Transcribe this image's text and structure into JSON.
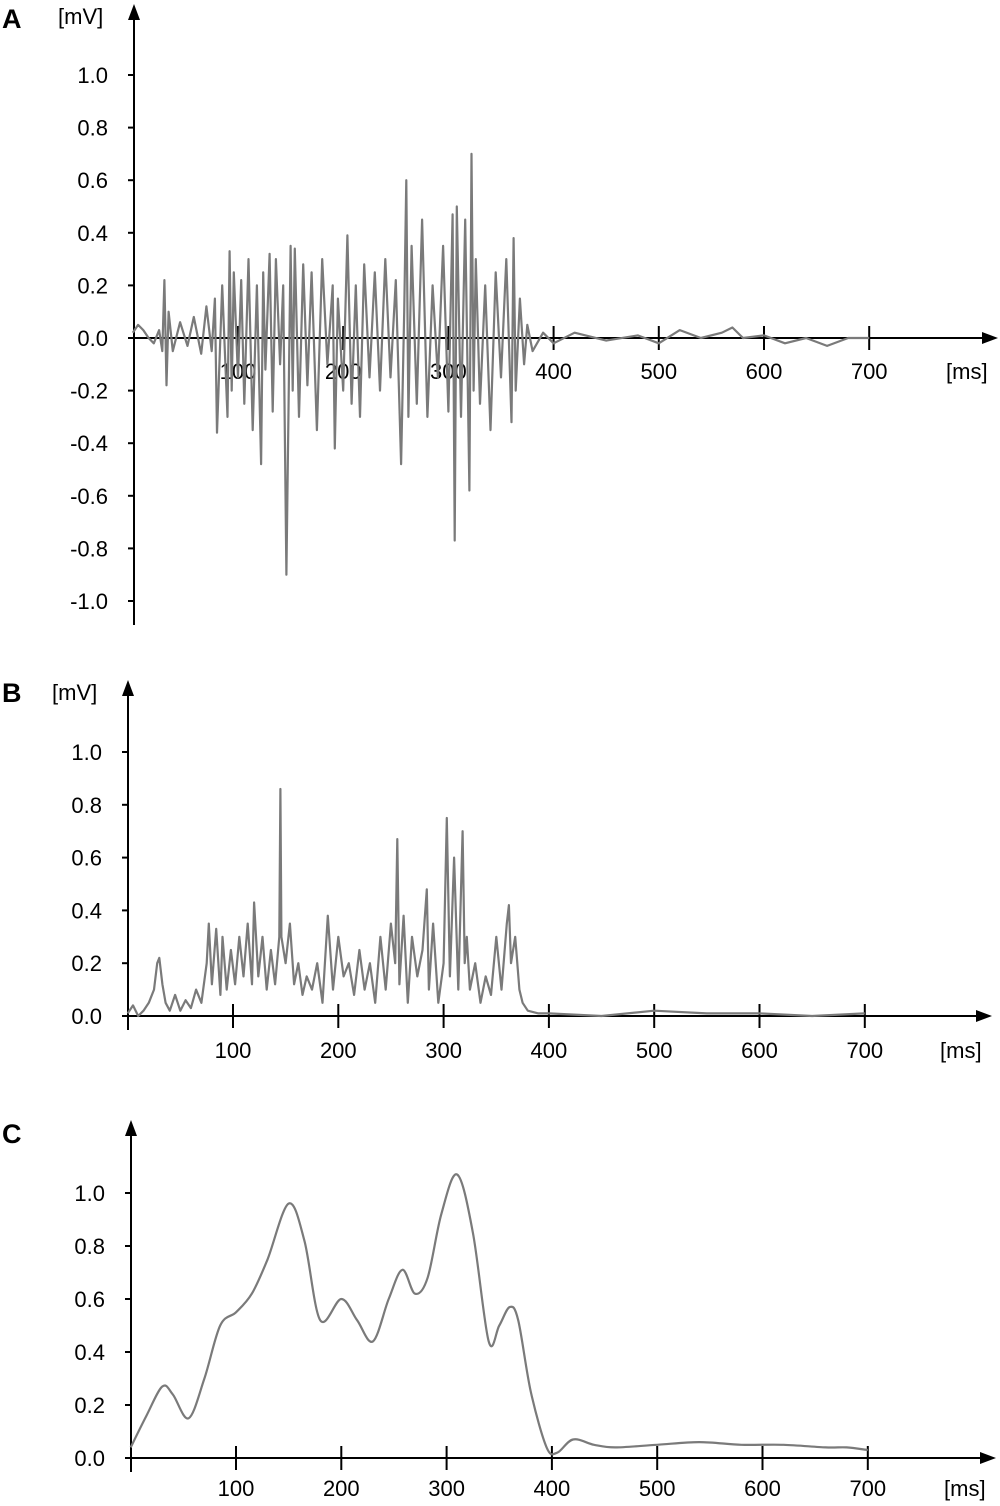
{
  "chart_data": [
    {
      "panel": "A",
      "type": "line",
      "ylabel": "[mV]",
      "xlabel": "[ms]",
      "xlim": [
        0,
        820
      ],
      "ylim": [
        -1.08,
        1.22
      ],
      "xticks": [
        100,
        200,
        300,
        400,
        500,
        600,
        700
      ],
      "xtick_labels": [
        "100",
        "200",
        "300",
        "400",
        "500",
        "600",
        "700"
      ],
      "yticks": [
        -1.0,
        -0.8,
        -0.6,
        -0.4,
        -0.2,
        0.0,
        0.2,
        0.4,
        0.6,
        0.8,
        1.0
      ],
      "ytick_labels": [
        "-1.0",
        "-0.8",
        "-0.6",
        "-0.4",
        "-0.2",
        "0.0",
        "0.2",
        "0.4",
        "0.6",
        "0.8",
        "1.0"
      ],
      "series": [
        {
          "color": "#7a7a7a",
          "x": [
            0,
            5,
            10,
            15,
            20,
            25,
            28,
            30,
            32,
            34,
            38,
            45,
            52,
            58,
            65,
            70,
            75,
            78,
            80,
            85,
            90,
            92,
            94,
            96,
            100,
            103,
            106,
            110,
            114,
            118,
            122,
            124,
            126,
            130,
            133,
            136,
            140,
            143,
            146,
            150,
            152,
            154,
            158,
            162,
            166,
            170,
            175,
            180,
            185,
            190,
            192,
            195,
            200,
            204,
            208,
            212,
            216,
            220,
            225,
            230,
            235,
            240,
            245,
            250,
            255,
            258,
            260,
            262,
            265,
            270,
            275,
            280,
            285,
            290,
            295,
            300,
            304,
            306,
            308,
            312,
            316,
            320,
            322,
            324,
            326,
            330,
            335,
            340,
            345,
            350,
            355,
            360,
            362,
            364,
            368,
            372,
            375,
            380,
            390,
            400,
            420,
            450,
            480,
            500,
            520,
            540,
            560,
            570,
            580,
            600,
            620,
            640,
            660,
            680,
            700
          ],
          "y": [
            0.02,
            0.05,
            0.03,
            0.0,
            -0.02,
            0.03,
            -0.05,
            0.22,
            -0.18,
            0.1,
            -0.05,
            0.06,
            -0.03,
            0.08,
            -0.06,
            0.12,
            -0.05,
            0.15,
            -0.36,
            0.2,
            -0.3,
            0.33,
            -0.2,
            0.25,
            -0.15,
            0.22,
            -0.25,
            0.3,
            -0.35,
            0.2,
            -0.48,
            0.25,
            -0.12,
            0.32,
            -0.28,
            0.3,
            -0.1,
            0.2,
            -0.9,
            0.35,
            -0.2,
            0.34,
            -0.3,
            0.28,
            -0.18,
            0.25,
            -0.35,
            0.3,
            -0.1,
            0.2,
            -0.42,
            0.15,
            -0.2,
            0.39,
            -0.25,
            0.2,
            -0.3,
            0.28,
            -0.15,
            0.25,
            -0.2,
            0.3,
            -0.15,
            0.22,
            -0.48,
            0.1,
            0.6,
            -0.3,
            0.35,
            -0.25,
            0.45,
            -0.3,
            0.2,
            -0.15,
            0.35,
            -0.28,
            0.47,
            -0.77,
            0.5,
            -0.3,
            0.45,
            -0.58,
            0.7,
            -0.2,
            0.3,
            -0.25,
            0.2,
            -0.35,
            0.25,
            -0.15,
            0.3,
            -0.32,
            0.38,
            -0.2,
            0.15,
            -0.1,
            0.05,
            -0.05,
            0.02,
            -0.02,
            0.02,
            -0.01,
            0.01,
            -0.02,
            0.03,
            0.0,
            0.02,
            0.04,
            0.0,
            0.01,
            -0.02,
            0.0,
            -0.03,
            0.0,
            0.0
          ]
        }
      ]
    },
    {
      "panel": "B",
      "type": "line",
      "ylabel": "[mV]",
      "xlabel": "[ms]",
      "xlim": [
        0,
        820
      ],
      "ylim": [
        0,
        1.22
      ],
      "xticks": [
        100,
        200,
        300,
        400,
        500,
        600,
        700
      ],
      "xtick_labels": [
        "100",
        "200",
        "300",
        "400",
        "500",
        "600",
        "700"
      ],
      "yticks": [
        0.0,
        0.2,
        0.4,
        0.6,
        0.8,
        1.0
      ],
      "ytick_labels": [
        "0.0",
        "0.2",
        "0.4",
        "0.6",
        "0.8",
        "1.0"
      ],
      "series": [
        {
          "color": "#7a7a7a",
          "x": [
            0,
            5,
            10,
            15,
            20,
            25,
            28,
            30,
            33,
            36,
            40,
            45,
            50,
            55,
            60,
            65,
            70,
            75,
            77,
            80,
            84,
            88,
            90,
            94,
            98,
            102,
            106,
            110,
            114,
            118,
            120,
            124,
            128,
            132,
            136,
            140,
            144,
            145,
            146,
            150,
            154,
            158,
            162,
            166,
            170,
            175,
            180,
            185,
            190,
            195,
            200,
            205,
            210,
            215,
            220,
            225,
            230,
            235,
            240,
            245,
            250,
            254,
            256,
            258,
            262,
            266,
            270,
            275,
            280,
            284,
            286,
            290,
            295,
            300,
            303,
            306,
            310,
            314,
            318,
            320,
            322,
            325,
            330,
            335,
            340,
            345,
            350,
            355,
            360,
            362,
            364,
            368,
            372,
            375,
            380,
            390,
            400,
            450,
            500,
            550,
            600,
            650,
            700
          ],
          "y": [
            0.01,
            0.04,
            0.0,
            0.02,
            0.05,
            0.1,
            0.2,
            0.22,
            0.12,
            0.05,
            0.02,
            0.08,
            0.02,
            0.06,
            0.03,
            0.1,
            0.05,
            0.2,
            0.35,
            0.12,
            0.33,
            0.08,
            0.3,
            0.1,
            0.25,
            0.12,
            0.3,
            0.15,
            0.35,
            0.12,
            0.43,
            0.15,
            0.3,
            0.1,
            0.25,
            0.12,
            0.3,
            0.86,
            0.3,
            0.2,
            0.35,
            0.12,
            0.2,
            0.08,
            0.15,
            0.1,
            0.2,
            0.05,
            0.38,
            0.1,
            0.3,
            0.15,
            0.2,
            0.08,
            0.25,
            0.1,
            0.2,
            0.05,
            0.3,
            0.1,
            0.35,
            0.2,
            0.67,
            0.12,
            0.38,
            0.05,
            0.3,
            0.15,
            0.25,
            0.48,
            0.1,
            0.35,
            0.05,
            0.2,
            0.75,
            0.15,
            0.6,
            0.1,
            0.7,
            0.2,
            0.3,
            0.1,
            0.2,
            0.05,
            0.15,
            0.08,
            0.3,
            0.1,
            0.35,
            0.42,
            0.2,
            0.3,
            0.1,
            0.05,
            0.02,
            0.01,
            0.01,
            0.0,
            0.02,
            0.01,
            0.01,
            0.0,
            0.01
          ]
        }
      ]
    },
    {
      "panel": "C",
      "type": "line",
      "ylabel": "",
      "xlabel": "[ms]",
      "xlim": [
        0,
        820
      ],
      "ylim": [
        0,
        1.22
      ],
      "xticks": [
        100,
        200,
        300,
        400,
        500,
        600,
        700
      ],
      "xtick_labels": [
        "100",
        "200",
        "300",
        "400",
        "500",
        "600",
        "700"
      ],
      "yticks": [
        0.0,
        0.2,
        0.4,
        0.6,
        0.8,
        1.0
      ],
      "ytick_labels": [
        "0.0",
        "0.2",
        "0.4",
        "0.6",
        "0.8",
        "1.0"
      ],
      "series": [
        {
          "color": "#7a7a7a",
          "x": [
            0,
            15,
            30,
            40,
            55,
            70,
            85,
            100,
            115,
            130,
            150,
            165,
            180,
            200,
            215,
            230,
            245,
            258,
            270,
            282,
            295,
            310,
            325,
            340,
            350,
            360,
            368,
            380,
            395,
            405,
            420,
            440,
            460,
            500,
            540,
            580,
            620,
            660,
            680,
            700
          ],
          "y": [
            0.04,
            0.16,
            0.27,
            0.24,
            0.15,
            0.3,
            0.5,
            0.55,
            0.62,
            0.75,
            0.96,
            0.82,
            0.52,
            0.6,
            0.52,
            0.44,
            0.6,
            0.71,
            0.62,
            0.68,
            0.92,
            1.07,
            0.85,
            0.44,
            0.5,
            0.57,
            0.52,
            0.25,
            0.04,
            0.02,
            0.07,
            0.05,
            0.04,
            0.05,
            0.06,
            0.05,
            0.05,
            0.04,
            0.04,
            0.03
          ]
        }
      ]
    }
  ]
}
